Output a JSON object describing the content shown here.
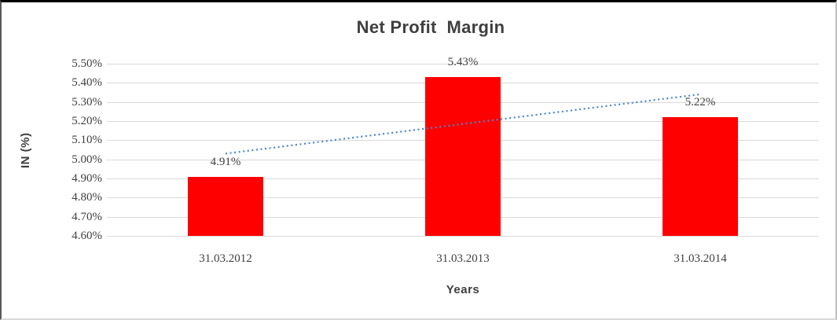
{
  "chart_data": {
    "type": "bar",
    "title": "Net Profit  Margin",
    "categories": [
      "31.03.2012",
      "31.03.2013",
      "31.03.2014"
    ],
    "values": [
      4.91,
      5.43,
      5.22
    ],
    "data_labels": [
      "4.91%",
      "5.43%",
      "5.22%"
    ],
    "xlabel": "Years",
    "ylabel": "IN (%)",
    "ylim": [
      4.6,
      5.5
    ],
    "ytick_values": [
      5.5,
      5.4,
      5.3,
      5.2,
      5.1,
      5.0,
      4.9,
      4.8,
      4.7,
      4.6
    ],
    "ytick_labels": [
      "5.50%",
      "5.40%",
      "5.30%",
      "5.20%",
      "5.10%",
      "5.00%",
      "4.90%",
      "4.80%",
      "4.70%",
      "4.60%"
    ],
    "grid": true,
    "legend": "none",
    "colors": {
      "bar": "#FF0000",
      "trendline": "#4A86C8",
      "gridline": "#D9D9D9",
      "tick_text": "#404040",
      "title_text": "#3F3F3F"
    },
    "trendline": {
      "type": "linear",
      "style": "dotted",
      "start_value": 5.03,
      "end_value": 5.34
    }
  }
}
